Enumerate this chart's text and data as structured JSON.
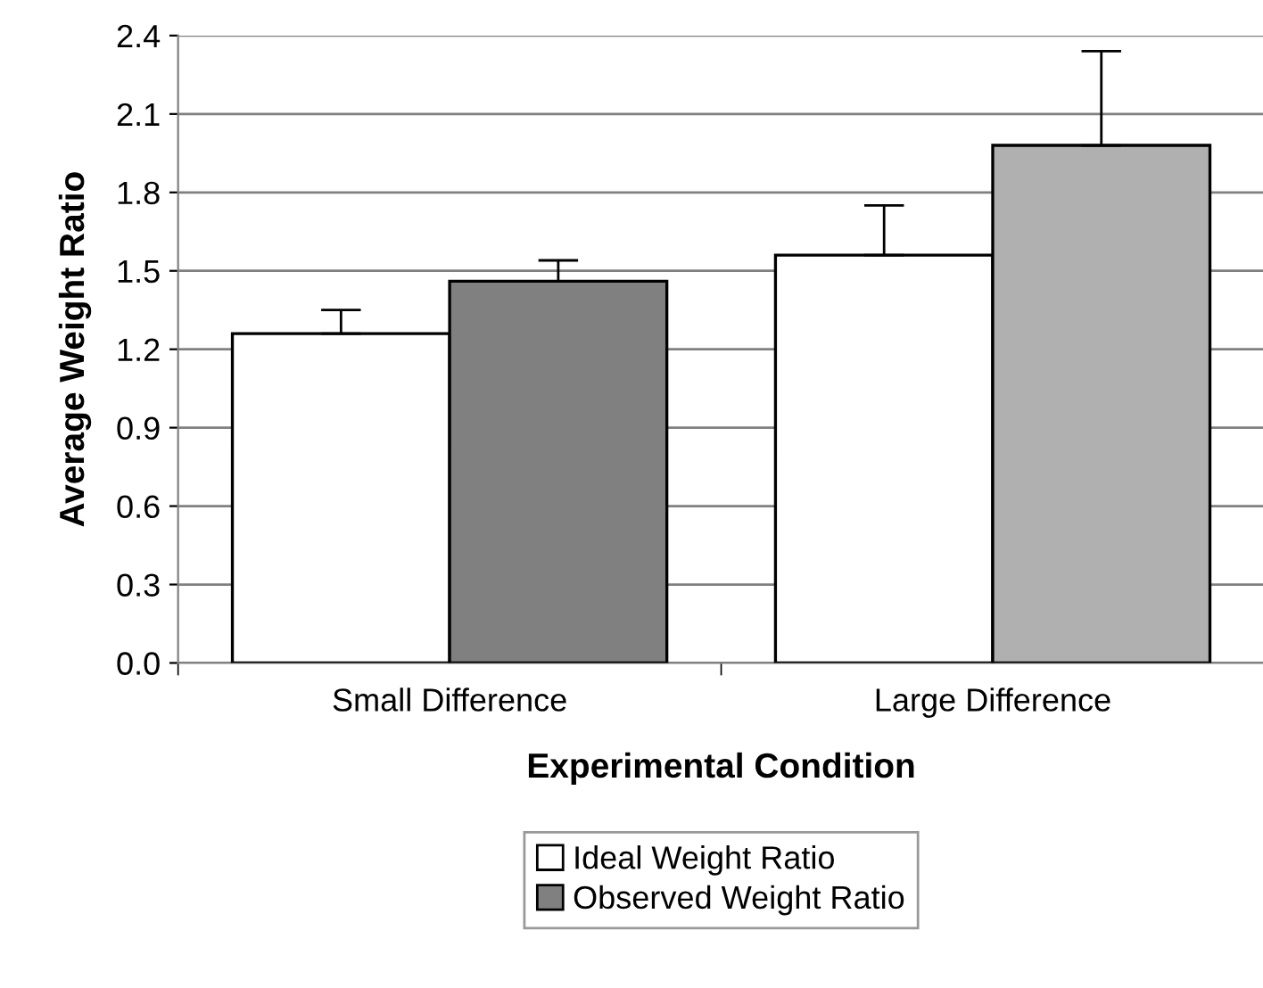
{
  "chart_data": {
    "type": "bar",
    "xlabel": "Experimental Condition",
    "ylabel": "Average Weight Ratio",
    "categories": [
      "Small Difference",
      "Large Difference"
    ],
    "series": [
      {
        "name": "Ideal Weight Ratio",
        "color": "#ffffff",
        "values": [
          1.26,
          1.56
        ],
        "errors": [
          [
            1.26,
            1.35
          ],
          [
            1.56,
            1.75
          ]
        ]
      },
      {
        "name": "Observed Weight Ratio",
        "color": "#808080",
        "colors": [
          "#808080",
          "#b0b0b0"
        ],
        "values": [
          1.46,
          1.98
        ],
        "errors": [
          [
            1.46,
            1.54
          ],
          [
            1.98,
            2.34
          ]
        ]
      }
    ],
    "ylim": [
      0,
      2.4
    ],
    "yticks": [
      {
        "value": 0,
        "label": "0.0"
      },
      {
        "value": 0.3,
        "label": "0.3"
      },
      {
        "value": 0.6,
        "label": "0.6"
      },
      {
        "value": 0.9,
        "label": "0.9"
      },
      {
        "value": 1.2,
        "label": "1.2"
      },
      {
        "value": 1.5,
        "label": "1.5"
      },
      {
        "value": 1.8,
        "label": "1.8"
      },
      {
        "value": 2.1,
        "label": "2.1"
      },
      {
        "value": 2.4,
        "label": "2.4"
      }
    ],
    "grid": "y",
    "legend": "bottom"
  }
}
